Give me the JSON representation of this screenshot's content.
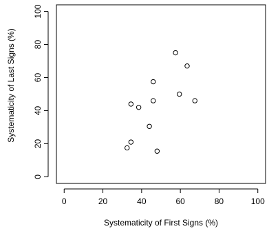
{
  "chart_data": {
    "type": "scatter",
    "title": "",
    "xlabel": "Systematicity of First Signs (%)",
    "ylabel": "Systematicity of Last Signs (%)",
    "xlim": [
      -4,
      104
    ],
    "ylim": [
      -4,
      104
    ],
    "x_ticks": [
      0,
      20,
      40,
      60,
      80,
      100
    ],
    "y_ticks": [
      0,
      20,
      40,
      60,
      80,
      100
    ],
    "x_tick_labels": [
      "0",
      "20",
      "40",
      "60",
      "80",
      "100"
    ],
    "y_tick_labels": [
      "0",
      "20",
      "40",
      "60",
      "80",
      "100"
    ],
    "grid": false,
    "legend": "none",
    "marker": "open-circle",
    "point_color": "#000000",
    "points": [
      {
        "x": 32.5,
        "y": 17.5
      },
      {
        "x": 34.5,
        "y": 21
      },
      {
        "x": 34.5,
        "y": 44
      },
      {
        "x": 38.5,
        "y": 42
      },
      {
        "x": 44,
        "y": 30.5
      },
      {
        "x": 46,
        "y": 46
      },
      {
        "x": 46,
        "y": 57.5
      },
      {
        "x": 48,
        "y": 15.5
      },
      {
        "x": 57.5,
        "y": 75
      },
      {
        "x": 59.5,
        "y": 50
      },
      {
        "x": 63.5,
        "y": 67
      },
      {
        "x": 67.5,
        "y": 46
      }
    ]
  }
}
